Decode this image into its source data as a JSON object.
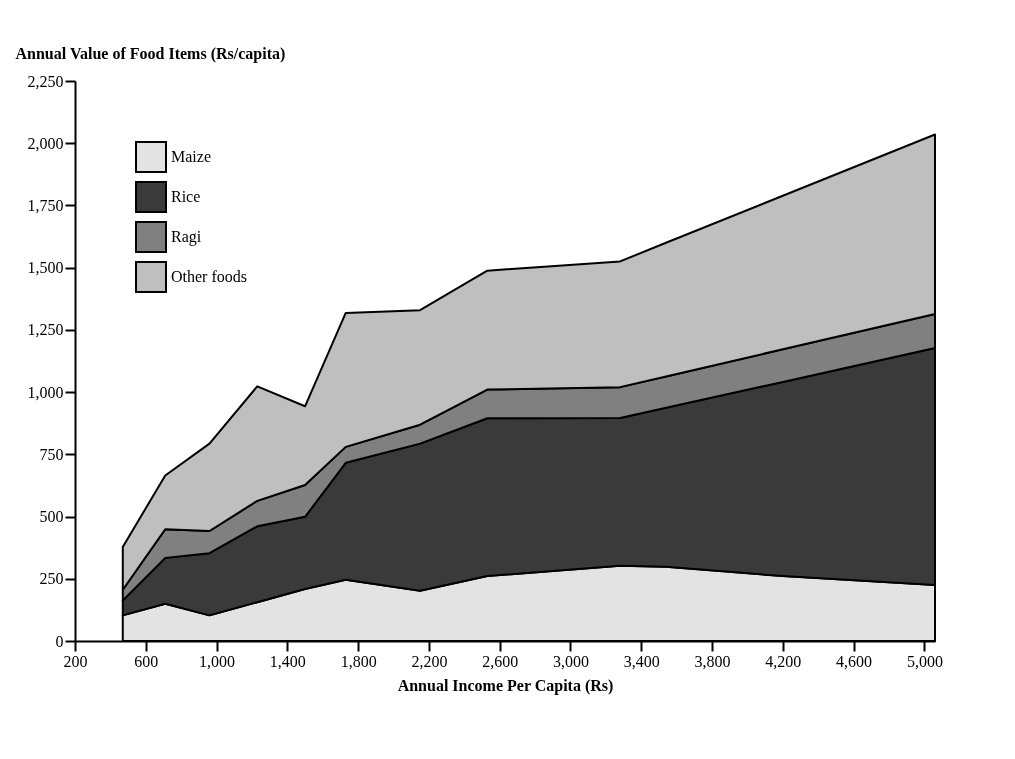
{
  "chart_data": {
    "type": "area",
    "stacked": true,
    "ylabel": "Annual Value of Food Items (Rs/capita)",
    "xlabel": "Annual Income Per Capita (Rs)",
    "x": [
      470,
      710,
      960,
      1230,
      1500,
      1730,
      2150,
      2530,
      3280,
      3540,
      4200,
      5060
    ],
    "series": [
      {
        "name": "Maize",
        "color": "#e3e3e3",
        "values": [
          103,
          150,
          103,
          156,
          209,
          246,
          202,
          261,
          302,
          298,
          261,
          225
        ]
      },
      {
        "name": "Rice",
        "color": "#3a3a3a",
        "values": [
          60,
          184,
          250,
          305,
          290,
          470,
          591,
          634,
          594,
          639,
          780,
          952
        ]
      },
      {
        "name": "Ragi",
        "color": "#808080",
        "values": [
          43,
          115,
          89,
          102,
          128,
          64,
          76,
          115,
          124,
          126,
          131,
          137
        ]
      },
      {
        "name": "Other foods",
        "color": "#bfbfbf",
        "values": [
          172,
          216,
          351,
          460,
          316,
          538,
          460,
          478,
          505,
          537,
          617,
          721
        ]
      }
    ],
    "xlim": [
      200,
      5060
    ],
    "xticks": [
      200,
      600,
      {
        "value": 1000,
        "label": "1,000"
      },
      {
        "value": 1400,
        "label": "1,400"
      },
      {
        "value": 1800,
        "label": "1,800"
      },
      {
        "value": 2200,
        "label": "2,200"
      },
      {
        "value": 2600,
        "label": "2,600"
      },
      {
        "value": 3000,
        "label": "3,000"
      },
      {
        "value": 3400,
        "label": "3,400"
      },
      {
        "value": 3800,
        "label": "3,800"
      },
      {
        "value": 4200,
        "label": "4,200"
      },
      {
        "value": 4600,
        "label": "4,600"
      },
      {
        "value": 5000,
        "label": "5,000"
      }
    ],
    "ylim": [
      0,
      2250
    ],
    "yticks": [
      0,
      250,
      500,
      750,
      {
        "value": 1000,
        "label": "1,000"
      },
      {
        "value": 1250,
        "label": "1,250"
      },
      {
        "value": 1500,
        "label": "1,500"
      },
      {
        "value": 1750,
        "label": "1,750"
      },
      {
        "value": 2000,
        "label": "2,000"
      },
      {
        "value": 2250,
        "label": "2,250"
      }
    ],
    "legend": "top left",
    "grid": false
  }
}
